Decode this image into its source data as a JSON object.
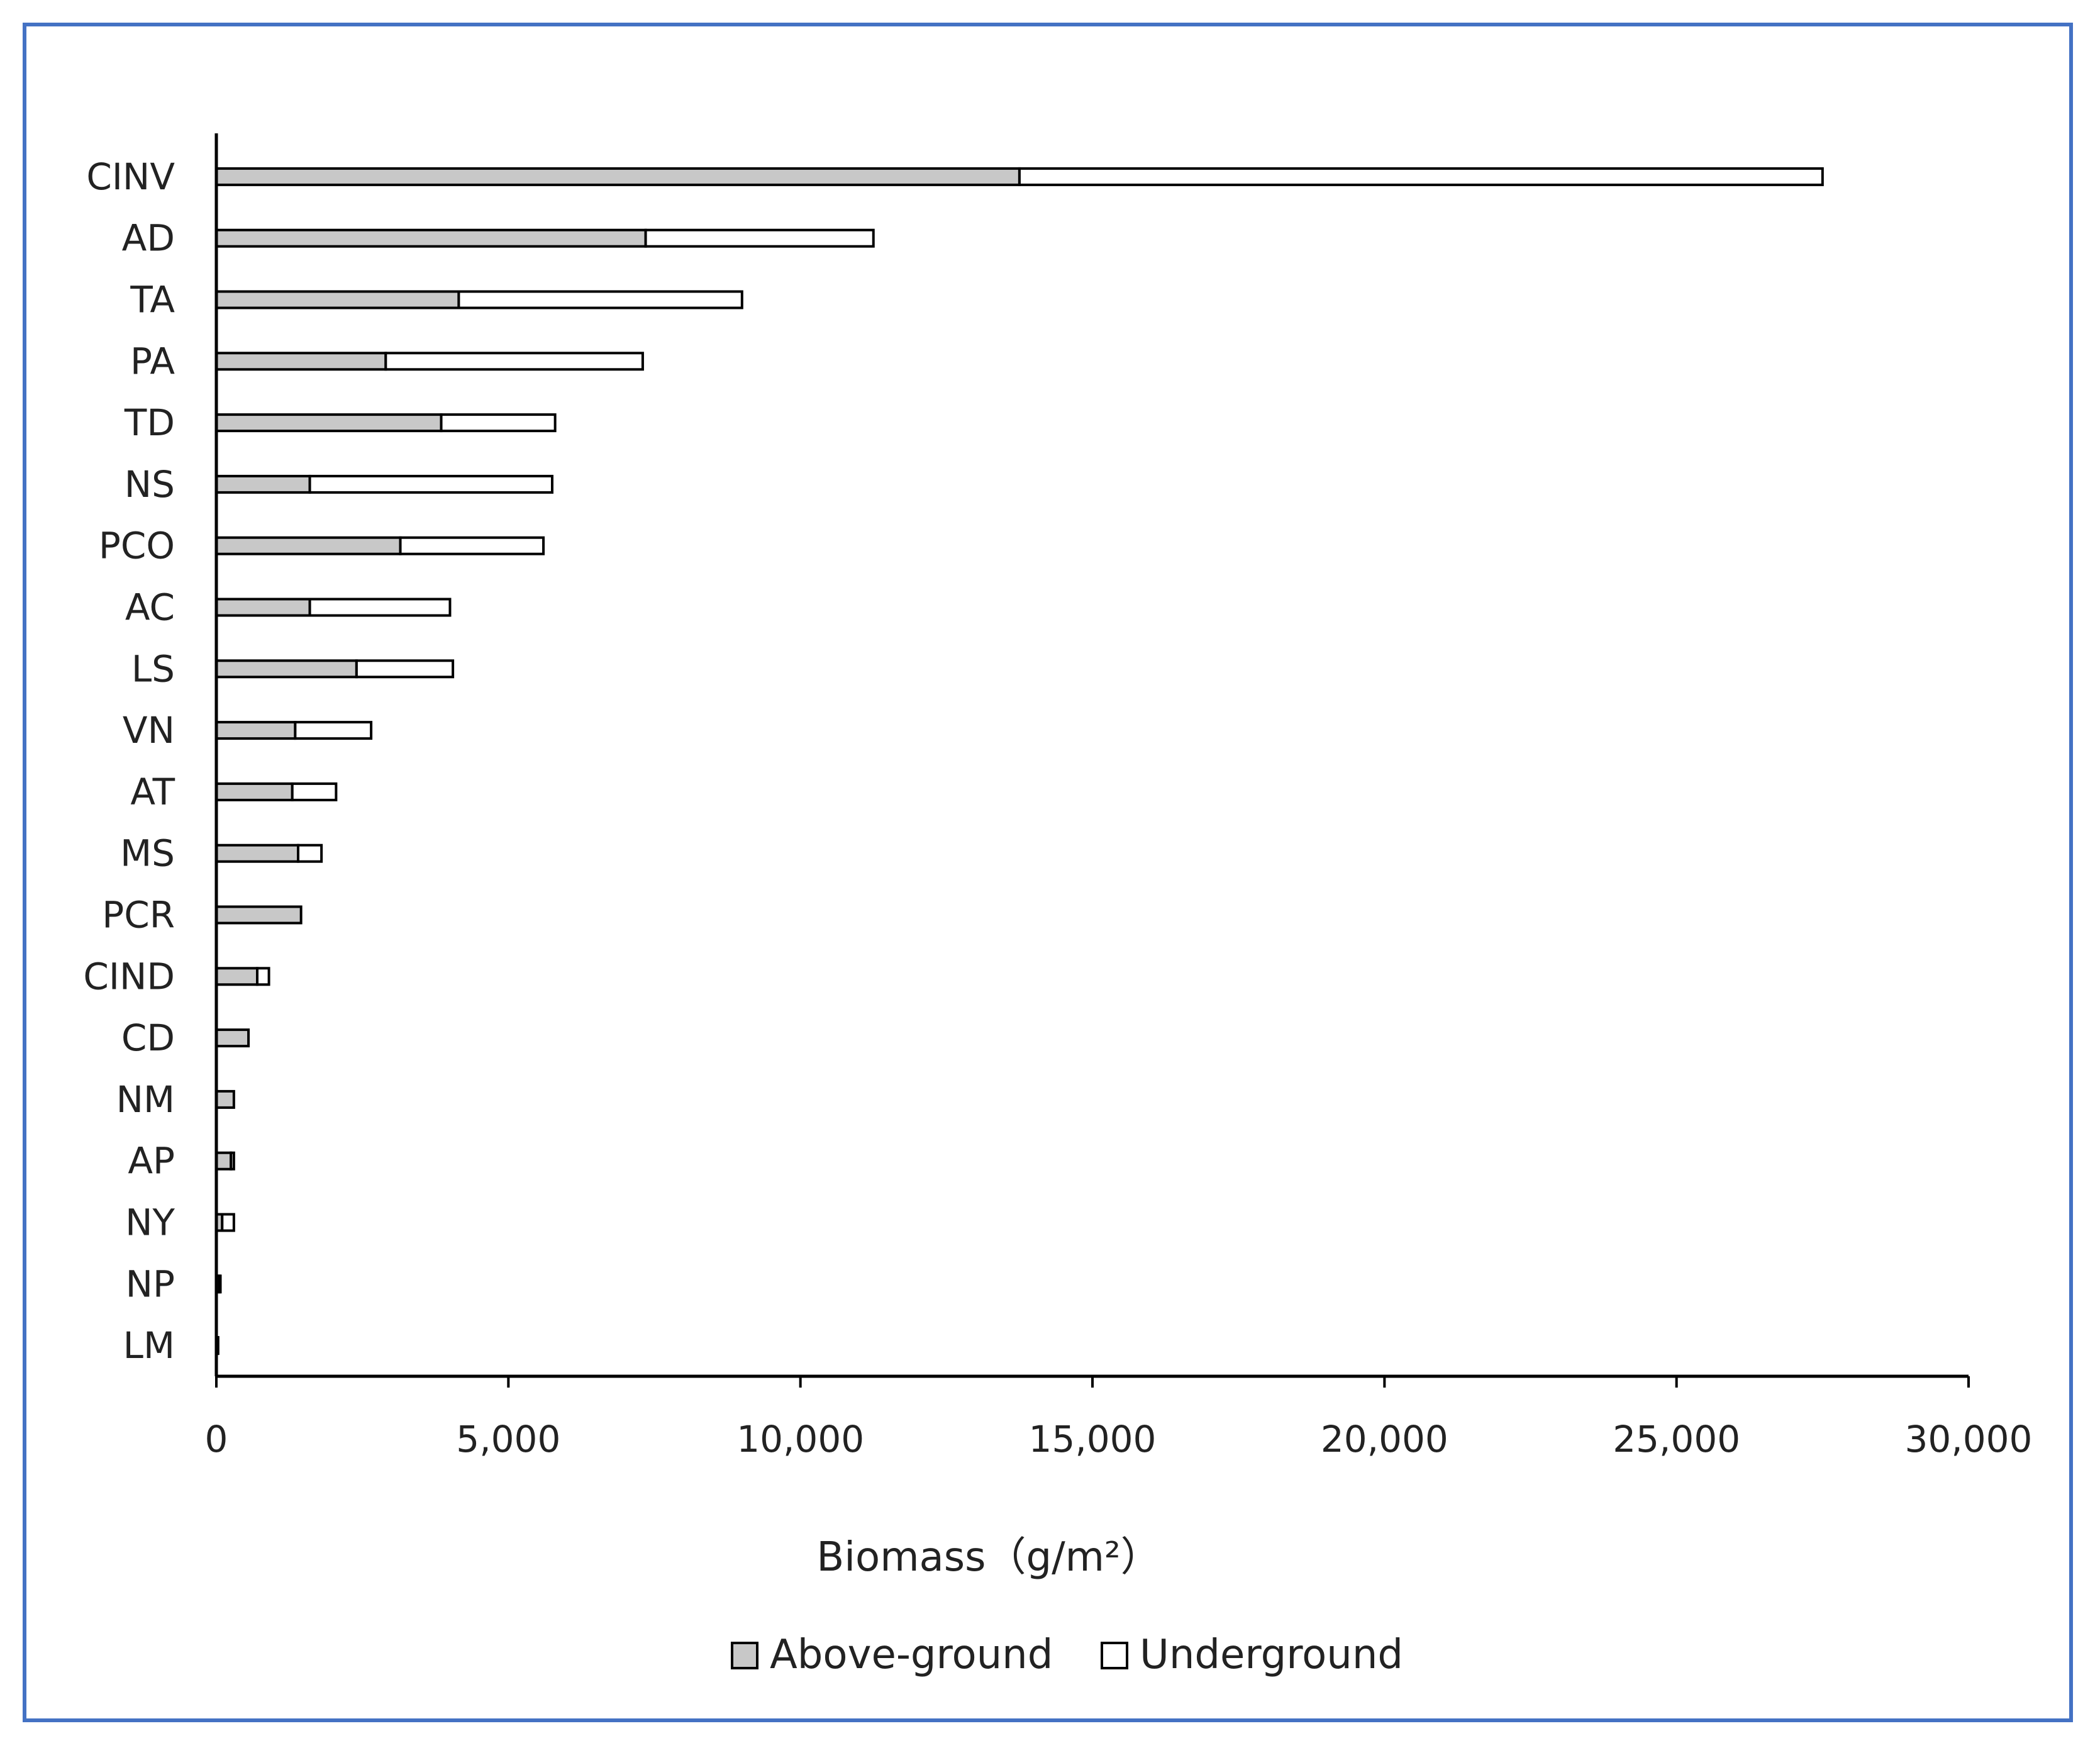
{
  "chart_data": {
    "type": "bar",
    "orientation": "horizontal",
    "stacked": true,
    "categories": [
      "CINV",
      "AD",
      "TA",
      "PA",
      "TD",
      "NS",
      "PCO",
      "AC",
      "LS",
      "VN",
      "AT",
      "MS",
      "PCR",
      "CIND",
      "CD",
      "NM",
      "AP",
      "NY",
      "NP",
      "LM"
    ],
    "series": [
      {
        "name": "Above-ground",
        "color": "#c8c8c8",
        "values": [
          13750,
          7350,
          4150,
          2900,
          3850,
          1600,
          3150,
          1600,
          2400,
          1350,
          1300,
          1400,
          1450,
          700,
          550,
          300,
          250,
          100,
          50,
          20
        ]
      },
      {
        "name": "Underground",
        "color": "#ffffff",
        "values": [
          13750,
          3900,
          4850,
          4400,
          1950,
          4150,
          2450,
          2400,
          1650,
          1300,
          750,
          400,
          0,
          200,
          0,
          0,
          50,
          200,
          20,
          10
        ]
      }
    ],
    "xlabel": "Biomass（g/m²）",
    "ylabel": "",
    "xlim": [
      0,
      30000
    ],
    "xticks": [
      0,
      5000,
      10000,
      15000,
      20000,
      25000,
      30000
    ],
    "xtick_labels": [
      "0",
      "5,000",
      "10,000",
      "15,000",
      "20,000",
      "25,000",
      "30,000"
    ],
    "grid": false,
    "legend": "bottom-center"
  }
}
